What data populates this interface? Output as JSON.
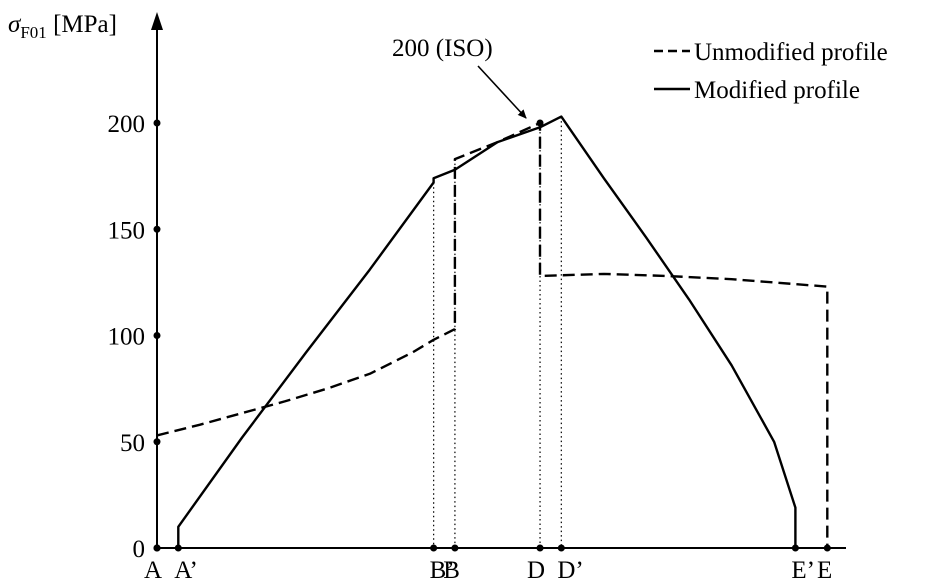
{
  "chart_data": {
    "type": "line",
    "ylabel": {
      "symbol": "σ",
      "subscript": "F01",
      "unit": " [MPa]"
    },
    "ylim": [
      0,
      200
    ],
    "yticks": [
      "0",
      "50",
      "100",
      "150",
      "200"
    ],
    "ytick_values": [
      0,
      50,
      100,
      150,
      200
    ],
    "x_points": [
      {
        "label": "A",
        "x": 0
      },
      {
        "label": "A’",
        "x": 1
      },
      {
        "label": "B’",
        "x": 13
      },
      {
        "label": "B",
        "x": 14
      },
      {
        "label": "D",
        "x": 18
      },
      {
        "label": "D’",
        "x": 19
      },
      {
        "label": "E’",
        "x": 30
      },
      {
        "label": "E",
        "x": 31.5
      }
    ],
    "xlim": [
      0,
      32.5
    ],
    "annotation": {
      "text": "200 (ISO)",
      "x": 18,
      "y": 200
    },
    "legend": {
      "position": "top-right"
    },
    "series": [
      {
        "name": "Unmodified profile",
        "style": "dashed",
        "points": [
          [
            0,
            53
          ],
          [
            2,
            58
          ],
          [
            4,
            63.5
          ],
          [
            6,
            69
          ],
          [
            8,
            75
          ],
          [
            10,
            82
          ],
          [
            12,
            92
          ],
          [
            13,
            98
          ],
          [
            14,
            103
          ],
          [
            14,
            183
          ],
          [
            16,
            191
          ],
          [
            18,
            200
          ],
          [
            18,
            128
          ],
          [
            21,
            129
          ],
          [
            24,
            128
          ],
          [
            27,
            126.5
          ],
          [
            31.5,
            123
          ],
          [
            31.5,
            0
          ]
        ]
      },
      {
        "name": "Modified profile",
        "style": "solid",
        "points": [
          [
            1,
            0
          ],
          [
            1,
            10
          ],
          [
            4,
            52
          ],
          [
            7,
            92
          ],
          [
            10,
            131
          ],
          [
            13,
            172
          ],
          [
            13,
            174
          ],
          [
            14,
            178
          ],
          [
            16,
            191
          ],
          [
            18,
            198
          ],
          [
            19,
            203
          ],
          [
            21,
            174
          ],
          [
            23,
            146
          ],
          [
            25,
            117
          ],
          [
            27,
            86
          ],
          [
            29,
            50
          ],
          [
            30,
            19
          ],
          [
            30,
            0
          ]
        ]
      }
    ],
    "grid": false
  }
}
